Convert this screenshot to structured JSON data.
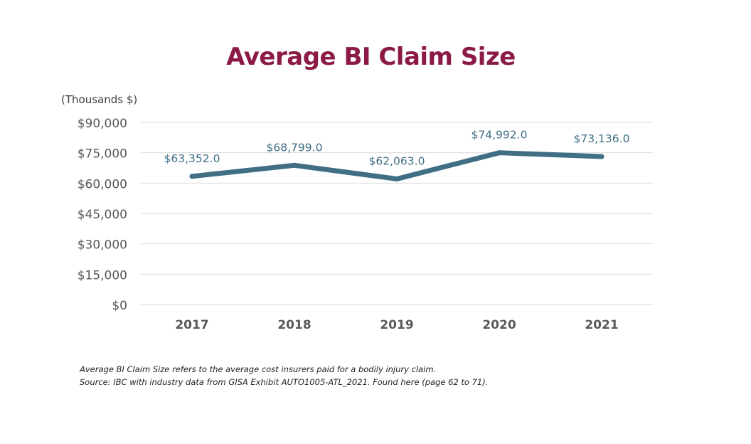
{
  "slide": {
    "title": "Average BI Claim Size",
    "unit_label": "(Thousands $)",
    "footnotes": [
      "Average BI Claim Size refers to the average cost insurers paid for a bodily injury claim.",
      "Source: IBC with industry data from GISA Exhibit AUTO1005-ATL_2021.  Found here (page 62 to 71)."
    ]
  },
  "chart_data": {
    "type": "line",
    "title": "Average BI Claim Size",
    "xlabel": "",
    "ylabel": "(Thousands $)",
    "categories": [
      "2017",
      "2018",
      "2019",
      "2020",
      "2021"
    ],
    "series": [
      {
        "values": [
          63352.0,
          68799.0,
          62063.0,
          74992.0,
          73136.0
        ],
        "data_labels": [
          "$63,352.0",
          "$68,799.0",
          "$62,063.0",
          "$74,992.0",
          "$73,136.0"
        ],
        "color": "#3f6e85"
      }
    ],
    "ylim": [
      0,
      90000
    ],
    "y_ticks": [
      0,
      15000,
      30000,
      45000,
      60000,
      75000,
      90000
    ],
    "y_tick_labels": [
      "$0",
      "$15,000",
      "$30,000",
      "$45,000",
      "$60,000",
      "$75,000",
      "$90,000"
    ],
    "grid": true,
    "legend": "none",
    "colors": {
      "line": "#3f6e85",
      "data_label": "#3f6e85",
      "gridline": "#d9d9d9",
      "axis_label": "#595959",
      "title": "#8b1a47"
    }
  }
}
